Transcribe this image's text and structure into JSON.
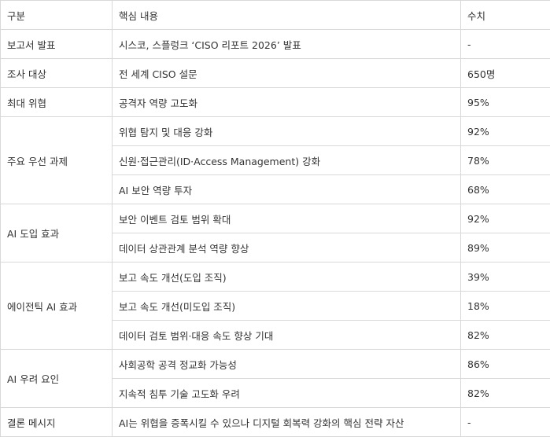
{
  "header": [
    "구분",
    "핵심 내용",
    "수치"
  ],
  "groups": [
    {
      "category": "보고서 발표",
      "rows": [
        {
          "content": "시스코, 스플렁크 ‘CISO 리포트 2026’ 발표",
          "value": "-"
        }
      ]
    },
    {
      "category": "조사 대상",
      "rows": [
        {
          "content": "전 세계 CISO 설문",
          "value": "650명"
        }
      ]
    },
    {
      "category": "최대 위협",
      "rows": [
        {
          "content": "공격자 역량 고도화",
          "value": "95%"
        }
      ]
    },
    {
      "category": "주요 우선 과제",
      "rows": [
        {
          "content": "위협 탐지 및 대응 강화",
          "value": "92%"
        },
        {
          "content": "신원·접근관리(ID·Access Management) 강화",
          "value": "78%"
        },
        {
          "content": "AI 보안 역량 투자",
          "value": "68%"
        }
      ]
    },
    {
      "category": "AI 도입 효과",
      "rows": [
        {
          "content": "보안 이벤트 검토 범위 확대",
          "value": "92%"
        },
        {
          "content": "데이터 상관관계 분석 역량 향상",
          "value": "89%"
        }
      ]
    },
    {
      "category": "에이전틱 AI 효과",
      "rows": [
        {
          "content": "보고 속도 개선(도입 조직)",
          "value": "39%"
        },
        {
          "content": "보고 속도 개선(미도입 조직)",
          "value": "18%"
        },
        {
          "content": "데이터 검토 범위·대응 속도 향상 기대",
          "value": "82%"
        }
      ]
    },
    {
      "category": "AI 우려 요인",
      "rows": [
        {
          "content": "사회공학 공격 정교화 가능성",
          "value": "86%"
        },
        {
          "content": "지속적 침투 기술 고도화 우려",
          "value": "82%"
        }
      ]
    },
    {
      "category": "결론 메시지",
      "rows": [
        {
          "content": "AI는 위협을 증폭시킬 수 있으나 디지털 회복력 강화의 핵심 전략 자산",
          "value": "-"
        }
      ]
    }
  ]
}
